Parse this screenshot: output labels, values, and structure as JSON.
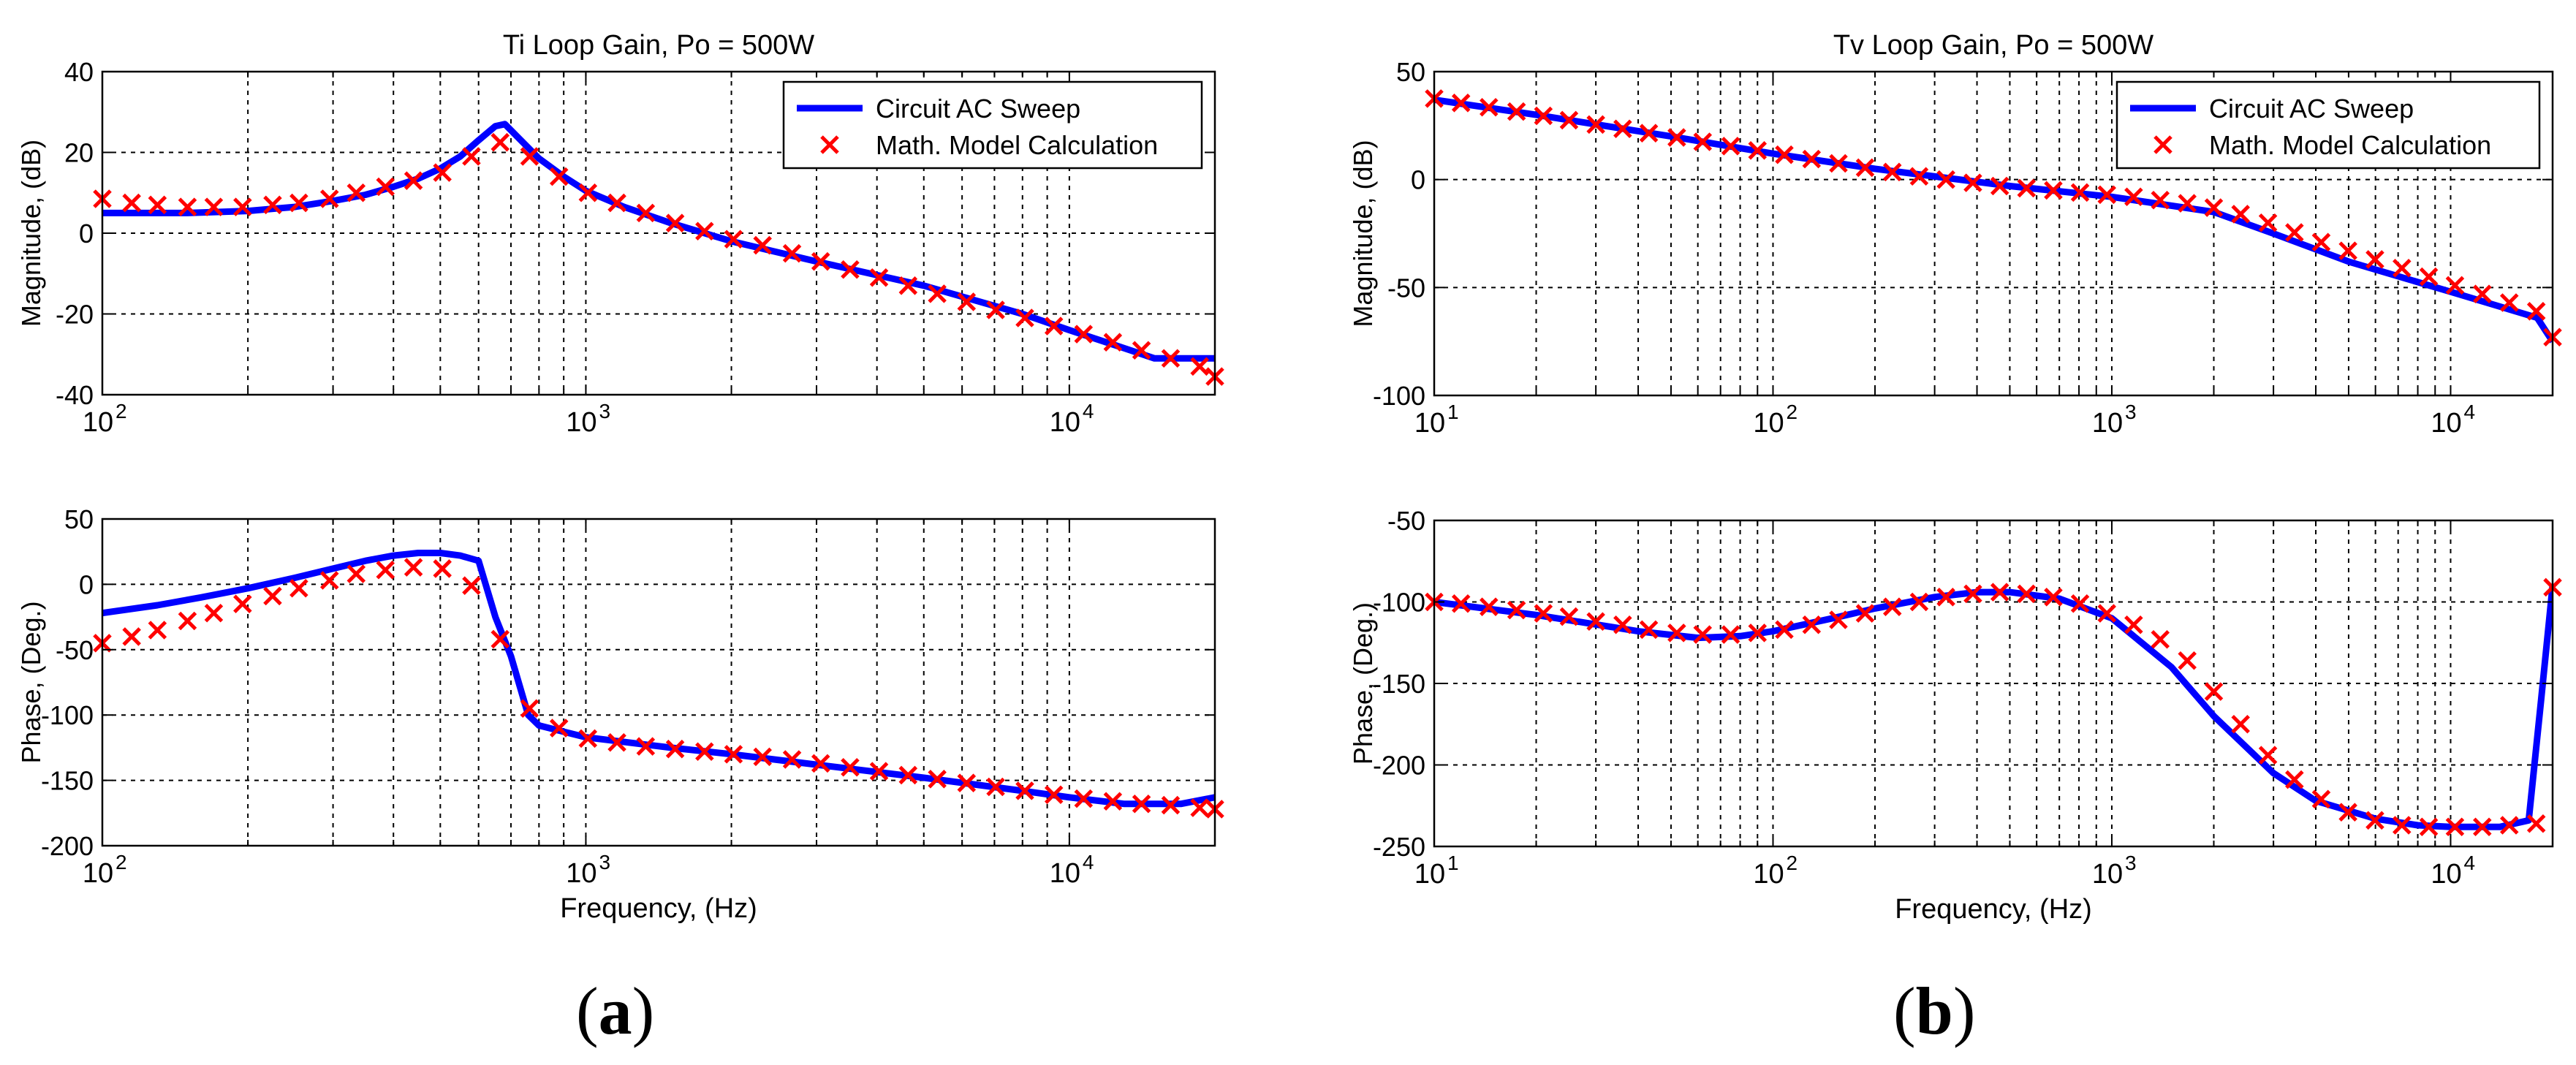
{
  "colors": {
    "circuit": "#0000ff",
    "math": "#ff0000",
    "grid": "#000000",
    "axes": "#000000"
  },
  "panel_labels": [
    {
      "open": "(",
      "letter": "a",
      "close": ")"
    },
    {
      "open": "(",
      "letter": "b",
      "close": ")"
    }
  ],
  "chart_data": [
    {
      "type": "line",
      "title": "Ti Loop Gain, Po = 500W",
      "xlabel": "",
      "ylabel": "Magnitude, (dB)",
      "xscale": "log",
      "xlim": [
        100,
        20000
      ],
      "ylim": [
        -40,
        40
      ],
      "yticks": [
        -40,
        -20,
        0,
        20,
        40
      ],
      "ytick_labels": [
        "-40",
        "-20",
        "0",
        "20",
        "40"
      ],
      "xticks": [
        100,
        1000,
        10000
      ],
      "xtick_labels": [
        "10",
        "10",
        "10"
      ],
      "xtick_exponents": [
        "2",
        "3",
        "4"
      ],
      "grid": true,
      "legend": {
        "position": "top-right",
        "entries": [
          "Circuit AC Sweep",
          "Math. Model Calculation"
        ]
      },
      "series": [
        {
          "name": "Circuit AC Sweep",
          "style": "line",
          "x": [
            100,
            150,
            200,
            250,
            300,
            350,
            400,
            450,
            500,
            550,
            600,
            650,
            680,
            720,
            800,
            900,
            1000,
            1200,
            1500,
            2000,
            3000,
            5000,
            8000,
            10000,
            13000,
            15000,
            20000
          ],
          "y": [
            5,
            5,
            5.5,
            6.5,
            8,
            9.5,
            11.5,
            13.5,
            16,
            19,
            23,
            26.5,
            27,
            24,
            18.5,
            14,
            10.5,
            6.5,
            2.5,
            -2,
            -7,
            -13,
            -20,
            -24,
            -28.5,
            -31,
            -31
          ]
        },
        {
          "name": "Math. Model Calculation",
          "style": "x-marker",
          "x": [
            100,
            115,
            130,
            150,
            170,
            195,
            225,
            255,
            295,
            335,
            385,
            440,
            505,
            580,
            665,
            765,
            880,
            1010,
            1160,
            1330,
            1530,
            1760,
            2020,
            2320,
            2670,
            3060,
            3520,
            4040,
            4640,
            5330,
            6130,
            7040,
            8090,
            9290,
            10700,
            12300,
            14100,
            16200,
            18600,
            20000
          ],
          "y": [
            8.5,
            7.5,
            7,
            6.5,
            6.5,
            6.5,
            7,
            7.5,
            8.5,
            10,
            11.5,
            13,
            15,
            19,
            22.5,
            19,
            14,
            10,
            7.5,
            5,
            2.5,
            0.5,
            -1.5,
            -3,
            -5,
            -7,
            -9,
            -11,
            -13,
            -15,
            -17,
            -19,
            -21,
            -23,
            -25,
            -27,
            -29,
            -31,
            -33,
            -35.5
          ]
        }
      ]
    },
    {
      "type": "line",
      "title": "",
      "xlabel": "Frequency, (Hz)",
      "ylabel": "Phase, (Deg.)",
      "xscale": "log",
      "xlim": [
        100,
        20000
      ],
      "ylim": [
        -200,
        50
      ],
      "yticks": [
        -200,
        -150,
        -100,
        -50,
        0,
        50
      ],
      "ytick_labels": [
        "-200",
        "-150",
        "-100",
        "-50",
        "0",
        "50"
      ],
      "xticks": [
        100,
        1000,
        10000
      ],
      "xtick_labels": [
        "10",
        "10",
        "10"
      ],
      "xtick_exponents": [
        "2",
        "3",
        "4"
      ],
      "grid": true,
      "series": [
        {
          "name": "Circuit AC Sweep",
          "style": "line",
          "x": [
            100,
            130,
            160,
            200,
            250,
            300,
            350,
            400,
            450,
            500,
            550,
            600,
            650,
            700,
            760,
            800,
            1000,
            1500,
            2000,
            3000,
            5000,
            8000,
            10000,
            13000,
            17000,
            20000
          ],
          "y": [
            -22,
            -16,
            -10,
            -3,
            5,
            12,
            18,
            22,
            24,
            24,
            22,
            18,
            -25,
            -55,
            -100,
            -108,
            -117,
            -125,
            -130,
            -138,
            -148,
            -158,
            -163,
            -168,
            -168,
            -163
          ]
        },
        {
          "name": "Math. Model Calculation",
          "style": "x-marker",
          "x": [
            100,
            115,
            130,
            150,
            170,
            195,
            225,
            255,
            295,
            335,
            385,
            440,
            505,
            580,
            665,
            765,
            880,
            1010,
            1160,
            1330,
            1530,
            1760,
            2020,
            2320,
            2670,
            3060,
            3520,
            4040,
            4640,
            5330,
            6130,
            7040,
            8090,
            9290,
            10700,
            12300,
            14100,
            16200,
            18600,
            20000
          ],
          "y": [
            -45,
            -40,
            -35,
            -28,
            -22,
            -15,
            -9,
            -3,
            3,
            8,
            11,
            13,
            12,
            -1,
            -42,
            -95,
            -110,
            -118,
            -121,
            -124,
            -126,
            -128,
            -130,
            -132,
            -134,
            -137,
            -140,
            -143,
            -146,
            -149,
            -152,
            -155,
            -158,
            -161,
            -164,
            -166,
            -168,
            -169,
            -171,
            -172
          ]
        }
      ]
    },
    {
      "type": "line",
      "title": "Tv Loop Gain, Po = 500W",
      "xlabel": "",
      "ylabel": "Magnitude, (dB)",
      "xscale": "log",
      "xlim": [
        10,
        20000
      ],
      "ylim": [
        -100,
        50
      ],
      "yticks": [
        -100,
        -50,
        0,
        50
      ],
      "ytick_labels": [
        "-100",
        "-50",
        "0",
        "50"
      ],
      "xticks": [
        10,
        100,
        1000,
        10000
      ],
      "xtick_labels": [
        "10",
        "10",
        "10",
        "10"
      ],
      "xtick_exponents": [
        "1",
        "2",
        "3",
        "4"
      ],
      "grid": true,
      "legend": {
        "position": "top-right",
        "entries": [
          "Circuit AC Sweep",
          "Math. Model Calculation"
        ]
      },
      "series": [
        {
          "name": "Circuit AC Sweep",
          "style": "line",
          "x": [
            10,
            20,
            50,
            100,
            200,
            500,
            1000,
            2000,
            3000,
            5000,
            10000,
            18000,
            20000
          ],
          "y": [
            37,
            30,
            20,
            12,
            5,
            -3,
            -8,
            -15,
            -25,
            -38,
            -52,
            -64,
            -75
          ]
        },
        {
          "name": "Math. Model Calculation",
          "style": "x-marker",
          "x": [
            10,
            12,
            14.5,
            17.5,
            21,
            25,
            30,
            36,
            43,
            52,
            62,
            75,
            90,
            108,
            130,
            156,
            187,
            225,
            270,
            324,
            389,
            467,
            560,
            672,
            806,
            967,
            1160,
            1390,
            1670,
            2000,
            2400,
            2890,
            3460,
            4150,
            4980,
            5980,
            7180,
            8620,
            10300,
            12400,
            14900,
            17900,
            20000
          ],
          "y": [
            37.5,
            35.5,
            33.5,
            31.5,
            29.5,
            27.5,
            25.5,
            23.5,
            21.5,
            19.5,
            17.5,
            15.5,
            13.5,
            11.5,
            9.5,
            7.5,
            5.5,
            3.5,
            1.5,
            0,
            -1.5,
            -3,
            -4,
            -5,
            -6,
            -7,
            -8,
            -9.5,
            -11,
            -13,
            -16,
            -20,
            -24.5,
            -29,
            -33,
            -37,
            -41,
            -45,
            -49,
            -53,
            -57,
            -61,
            -73
          ]
        }
      ]
    },
    {
      "type": "line",
      "title": "",
      "xlabel": "Frequency, (Hz)",
      "ylabel": "Phase, (Deg.)",
      "xscale": "log",
      "xlim": [
        10,
        20000
      ],
      "ylim": [
        -250,
        -50
      ],
      "yticks": [
        -250,
        -200,
        -150,
        -100,
        -50
      ],
      "ytick_labels": [
        "-250",
        "-200",
        "-150",
        "-100",
        "-50"
      ],
      "xticks": [
        10,
        100,
        1000,
        10000
      ],
      "xtick_labels": [
        "10",
        "10",
        "10",
        "10"
      ],
      "xtick_exponents": [
        "1",
        "2",
        "3",
        "4"
      ],
      "grid": true,
      "series": [
        {
          "name": "Circuit AC Sweep",
          "style": "line",
          "x": [
            10,
            20,
            40,
            60,
            80,
            100,
            150,
            200,
            300,
            400,
            500,
            700,
            1000,
            1500,
            2000,
            3000,
            4000,
            6000,
            8000,
            10000,
            14000,
            17000,
            18500,
            20000
          ],
          "y": [
            -100,
            -108,
            -118,
            -122,
            -121,
            -118,
            -110,
            -104,
            -97,
            -94,
            -94,
            -98,
            -110,
            -140,
            -170,
            -205,
            -222,
            -233,
            -237,
            -238,
            -238,
            -234,
            -160,
            -90
          ]
        },
        {
          "name": "Math. Model Calculation",
          "style": "x-marker",
          "x": [
            10,
            12,
            14.5,
            17.5,
            21,
            25,
            30,
            36,
            43,
            52,
            62,
            75,
            90,
            108,
            130,
            156,
            187,
            225,
            270,
            324,
            389,
            467,
            560,
            672,
            806,
            967,
            1160,
            1390,
            1670,
            2000,
            2400,
            2890,
            3460,
            4150,
            4980,
            5980,
            7180,
            8620,
            10300,
            12400,
            14900,
            17900,
            20000
          ],
          "y": [
            -100,
            -101,
            -103,
            -105,
            -107,
            -109,
            -112,
            -114,
            -117,
            -119,
            -120,
            -120,
            -119,
            -117,
            -114,
            -111,
            -107,
            -103,
            -100,
            -97,
            -95,
            -94,
            -95,
            -97,
            -101,
            -107,
            -114,
            -123,
            -136,
            -155,
            -175,
            -194,
            -209,
            -221,
            -229,
            -234,
            -237,
            -238,
            -238,
            -238,
            -237,
            -236,
            -91
          ]
        }
      ]
    }
  ]
}
